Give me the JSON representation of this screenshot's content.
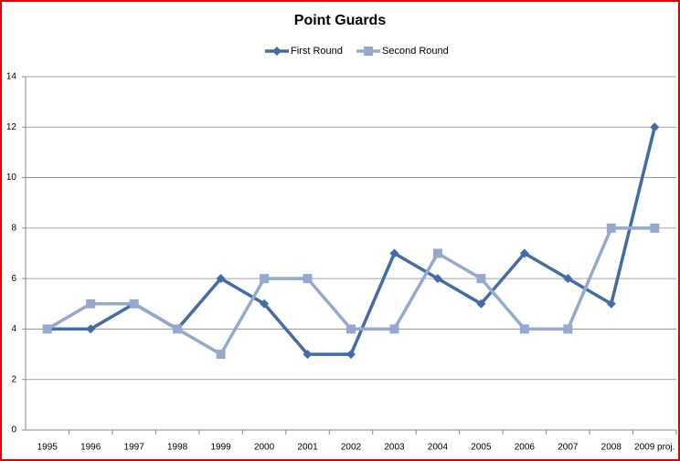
{
  "chart_data": {
    "type": "line",
    "title": "Point Guards",
    "categories": [
      "1995",
      "1996",
      "1997",
      "1998",
      "1999",
      "2000",
      "2001",
      "2002",
      "2003",
      "2004",
      "2005",
      "2006",
      "2007",
      "2008",
      "2009 proj."
    ],
    "series": [
      {
        "name": "First Round",
        "color": "#416ca6",
        "marker": "diamond",
        "values": [
          4,
          4,
          5,
          4,
          6,
          5,
          3,
          3,
          7,
          6,
          5,
          7,
          6,
          5,
          12
        ]
      },
      {
        "name": "Second Round",
        "color": "#94a9d0",
        "marker": "square",
        "values": [
          4,
          5,
          5,
          4,
          3,
          6,
          6,
          4,
          4,
          7,
          6,
          4,
          4,
          8,
          8
        ]
      }
    ],
    "ylim": [
      0,
      14
    ],
    "yticks": [
      0,
      2,
      4,
      6,
      8,
      10,
      12,
      14
    ],
    "grid": true,
    "legend": "top"
  }
}
